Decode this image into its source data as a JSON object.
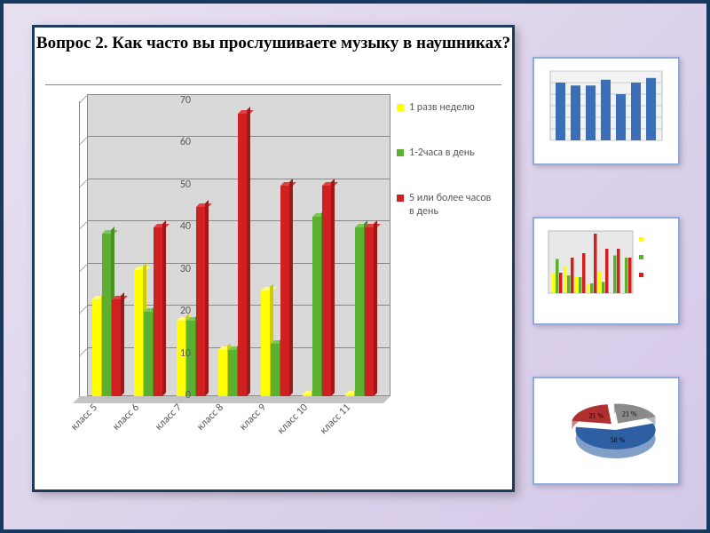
{
  "title": "Вопрос 2. Как часто вы прослушиваете музыку в наушниках?",
  "chart": {
    "type": "bar",
    "ylim": [
      0,
      70
    ],
    "ytick_step": 10,
    "categories": [
      "класс 5",
      "класс 6",
      "класс 7",
      "класс 8",
      "класс 9",
      "класс 10",
      "класс 11"
    ],
    "series": [
      {
        "name": "1 разв неделю",
        "color": "#ffff00",
        "cls": "b-y",
        "values": [
          23,
          30,
          18,
          11,
          25,
          0.5,
          0.5
        ]
      },
      {
        "name": "1-2часа в день",
        "color": "#5bb030",
        "cls": "b-g",
        "values": [
          38.5,
          20,
          18,
          11,
          12.5,
          42.5,
          40
        ]
      },
      {
        "name": "5 или более часов в день",
        "color": "#d02020",
        "cls": "b-r",
        "values": [
          23,
          40,
          45,
          67,
          50,
          50,
          40
        ]
      }
    ],
    "plot_bg": "#d9d9d9",
    "floor": "#c4c4c4",
    "grid": "#888888",
    "label_font": "Calibri",
    "label_size": 12,
    "label_color": "#595959"
  },
  "thumbs": {
    "t1": {
      "type": "bar",
      "color": "#3a6fb7",
      "values": [
        100,
        95,
        95,
        105,
        80,
        100,
        108
      ],
      "ymax": 120
    },
    "t2": "repeat-of-main",
    "t3": {
      "type": "pie3d",
      "slices": [
        {
          "label": "58 %",
          "color": "#2e5fa3",
          "v": 58
        },
        {
          "label": "21 %",
          "color": "#b03030",
          "v": 21
        },
        {
          "label": "21 %",
          "color": "#8a8a8a",
          "v": 21
        }
      ]
    }
  }
}
